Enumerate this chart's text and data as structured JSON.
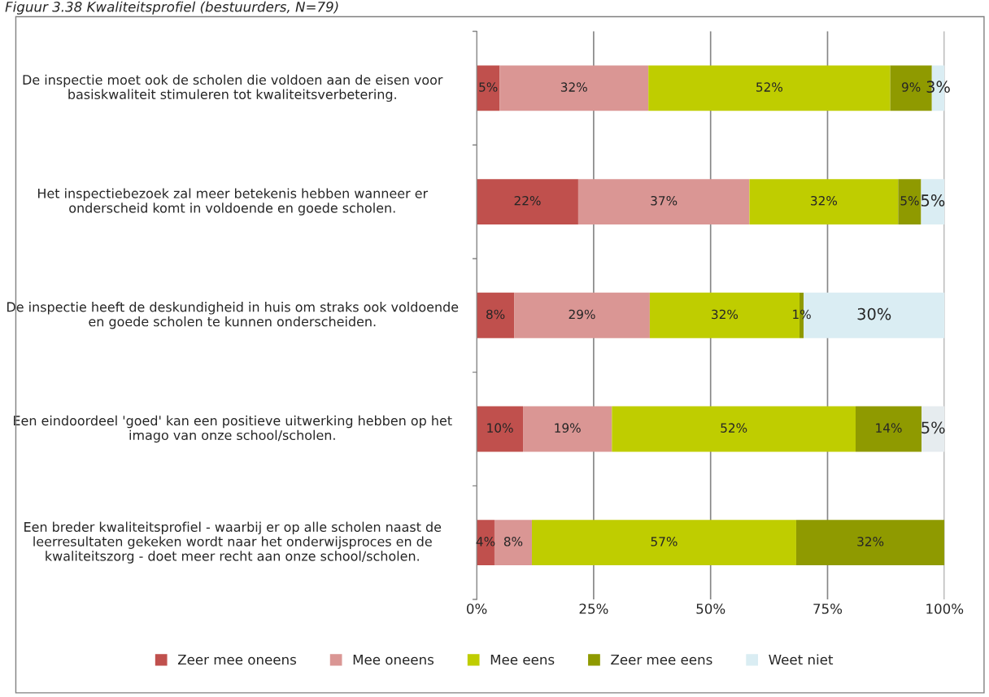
{
  "chart_data": {
    "type": "bar",
    "orientation": "horizontal",
    "stacked": true,
    "title": "Figuur 3.38 Kwaliteitsprofiel (bestuurders, N=79)",
    "categories": [
      "De inspectie moet ook de scholen die voldoen aan de eisen voor basiskwaliteit stimuleren tot kwaliteitsverbetering.",
      "Het inspectiebezoek zal meer betekenis hebben wanneer er onderscheid komt in voldoende en goede scholen.",
      "De inspectie heeft de deskundigheid in huis om straks ook voldoende en goede scholen te kunnen onderscheiden.",
      "Een eindoordeel 'goed' kan een positieve uitwerking hebben op het imago van onze school/scholen.",
      "Een breder kwaliteitsprofiel - waarbij er op alle scholen naast de leerresultaten gekeken wordt naar het onderwijsproces en de kwaliteitszorg - doet meer recht aan onze school/scholen."
    ],
    "series": [
      {
        "name": "Zeer mee oneens",
        "color": "#c0504d",
        "values": [
          4.9,
          21.7,
          8.0,
          9.9,
          3.8
        ],
        "value_labels": [
          "5%",
          "22%",
          "8%",
          "10%",
          "4%"
        ]
      },
      {
        "name": "Mee oneens",
        "color": "#da9694",
        "values": [
          31.8,
          36.6,
          29.0,
          19.0,
          8.0
        ],
        "value_labels": [
          "32%",
          "37%",
          "29%",
          "19%",
          "8%"
        ]
      },
      {
        "name": "Mee eens",
        "color": "#bfcd00",
        "values": [
          51.7,
          31.8,
          32.0,
          52.1,
          56.5
        ],
        "value_labels": [
          "52%",
          "32%",
          "32%",
          "52%",
          "57%"
        ]
      },
      {
        "name": "Zeer mee eens",
        "color": "#8f9a00",
        "values": [
          8.9,
          4.9,
          0.9,
          14.1,
          31.7
        ],
        "value_labels": [
          "9%",
          "5%",
          "1%",
          "14%",
          "32%"
        ]
      },
      {
        "name": "Weet niet",
        "color": "#daedf3",
        "colors": [
          "#daedf3",
          "#daedf3",
          "#daedf3",
          "#e6ecef",
          "#daedf3"
        ],
        "values": [
          2.7,
          5.0,
          30.1,
          4.9,
          0
        ],
        "value_labels": [
          "3%",
          "5%",
          "30%",
          "5%",
          null
        ]
      }
    ],
    "xlim": [
      0,
      100
    ],
    "xticks": [
      {
        "value": 0,
        "label": "0%"
      },
      {
        "value": 25,
        "label": "25%"
      },
      {
        "value": 50,
        "label": "50%"
      },
      {
        "value": 75,
        "label": "75%"
      },
      {
        "value": 100,
        "label": "100%"
      }
    ],
    "grid": "x",
    "legend": "bottom"
  }
}
